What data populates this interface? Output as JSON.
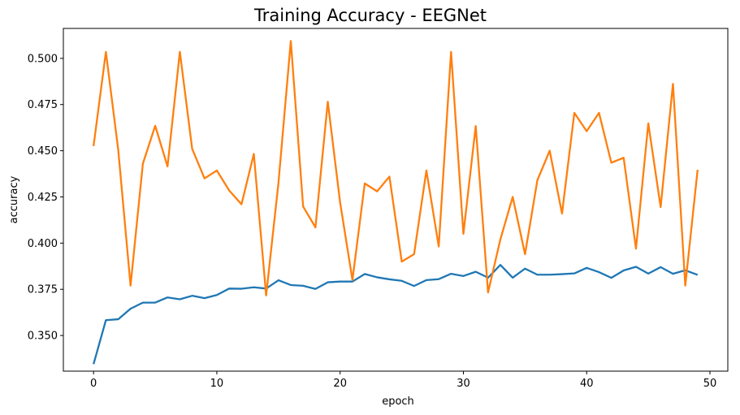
{
  "chart_data": {
    "type": "line",
    "title": "Training Accuracy - EEGNet",
    "xlabel": "epoch",
    "ylabel": "accuracy",
    "xlim": [
      -2.45,
      51.45
    ],
    "ylim": [
      0.3307,
      0.5162
    ],
    "xticks": [
      0,
      10,
      20,
      30,
      40,
      50
    ],
    "yticks": [
      0.35,
      0.375,
      0.4,
      0.425,
      0.45,
      0.475,
      0.5
    ],
    "ytick_labels": [
      "0.350",
      "0.375",
      "0.400",
      "0.425",
      "0.450",
      "0.475",
      "0.500"
    ],
    "grid": false,
    "x": [
      0,
      1,
      2,
      3,
      4,
      5,
      6,
      7,
      8,
      9,
      10,
      11,
      12,
      13,
      14,
      15,
      16,
      17,
      18,
      19,
      20,
      21,
      22,
      23,
      24,
      25,
      26,
      27,
      28,
      29,
      30,
      31,
      32,
      33,
      34,
      35,
      36,
      37,
      38,
      39,
      40,
      41,
      42,
      43,
      44,
      45,
      46,
      47,
      48,
      49
    ],
    "series": [
      {
        "color": "#1f77b4",
        "values": [
          0.3345,
          0.3583,
          0.3588,
          0.3645,
          0.3678,
          0.3678,
          0.3706,
          0.3696,
          0.3715,
          0.3702,
          0.3719,
          0.3754,
          0.3753,
          0.3761,
          0.3754,
          0.3799,
          0.3773,
          0.3769,
          0.3752,
          0.3788,
          0.3792,
          0.3792,
          0.3833,
          0.3815,
          0.3804,
          0.3796,
          0.3768,
          0.38,
          0.3805,
          0.3834,
          0.3822,
          0.3845,
          0.3813,
          0.3882,
          0.3813,
          0.3862,
          0.3829,
          0.3829,
          0.3832,
          0.3836,
          0.3866,
          0.3843,
          0.3812,
          0.3852,
          0.3872,
          0.3835,
          0.387,
          0.3834,
          0.3853,
          0.3828
        ]
      },
      {
        "color": "#ff7f0e",
        "values": [
          0.4525,
          0.5035,
          0.4506,
          0.377,
          0.443,
          0.4635,
          0.4415,
          0.5035,
          0.451,
          0.435,
          0.4393,
          0.4285,
          0.421,
          0.4483,
          0.3717,
          0.4327,
          0.5094,
          0.4198,
          0.4085,
          0.4765,
          0.422,
          0.38,
          0.4323,
          0.428,
          0.436,
          0.39,
          0.394,
          0.4393,
          0.3982,
          0.5035,
          0.405,
          0.4634,
          0.3733,
          0.402,
          0.425,
          0.394,
          0.434,
          0.45,
          0.416,
          0.4705,
          0.4606,
          0.4705,
          0.4435,
          0.4462,
          0.397,
          0.4648,
          0.4195,
          0.4862,
          0.377,
          0.4397
        ]
      }
    ]
  }
}
